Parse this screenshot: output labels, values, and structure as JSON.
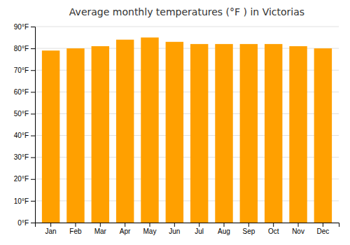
{
  "chart_data": {
    "type": "bar",
    "title": "Average monthly temperatures (°F ) in Victorias",
    "categories": [
      "Jan",
      "Feb",
      "Mar",
      "Apr",
      "May",
      "Jun",
      "Jul",
      "Aug",
      "Sep",
      "Oct",
      "Nov",
      "Dec"
    ],
    "values": [
      79,
      80,
      81,
      84,
      85,
      83,
      82,
      82,
      82,
      82,
      81,
      80
    ],
    "color": "#FFA000",
    "ylim": [
      0,
      90
    ],
    "yticks": [
      {
        "value": 0,
        "label": "0°F"
      },
      {
        "value": 10,
        "label": "10°F"
      },
      {
        "value": 20,
        "label": "20°F"
      },
      {
        "value": 30,
        "label": "30°F"
      },
      {
        "value": 40,
        "label": "40°F"
      },
      {
        "value": 50,
        "label": "50°F"
      },
      {
        "value": 60,
        "label": "60°F"
      },
      {
        "value": 70,
        "label": "70°F"
      },
      {
        "value": 80,
        "label": "80°F"
      },
      {
        "value": 90,
        "label": "90°F"
      }
    ],
    "grid": true
  }
}
